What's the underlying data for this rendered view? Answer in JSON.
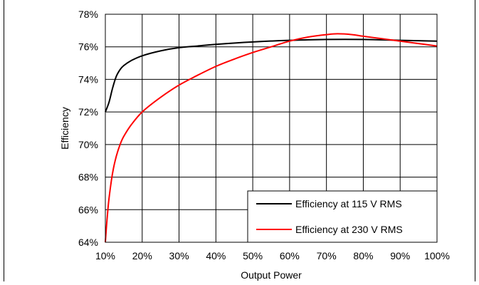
{
  "chart_data": {
    "type": "line",
    "title": "",
    "xlabel": "Output Power",
    "ylabel": "Efficiency",
    "xlim": [
      10,
      100
    ],
    "ylim": [
      64,
      78
    ],
    "x_ticks": [
      "10%",
      "20%",
      "30%",
      "40%",
      "50%",
      "60%",
      "70%",
      "80%",
      "90%",
      "100%"
    ],
    "y_ticks": [
      "64%",
      "66%",
      "68%",
      "70%",
      "72%",
      "74%",
      "76%",
      "78%"
    ],
    "grid": true,
    "legend_position": "bottom-right",
    "series": [
      {
        "name": "Efficiency at 115 V RMS",
        "color": "#000000",
        "x": [
          10,
          11,
          12,
          13,
          14,
          15,
          17,
          20,
          25,
          30,
          35,
          40,
          50,
          60,
          70,
          80,
          90,
          100
        ],
        "y": [
          72.0,
          72.6,
          73.5,
          74.2,
          74.6,
          74.85,
          75.15,
          75.45,
          75.75,
          75.95,
          76.05,
          76.15,
          76.3,
          76.4,
          76.45,
          76.45,
          76.4,
          76.35
        ]
      },
      {
        "name": "Efficiency at 230 V RMS",
        "color": "#ff0000",
        "x": [
          10,
          10.5,
          11,
          12,
          13,
          14,
          15,
          17,
          20,
          25,
          30,
          35,
          40,
          45,
          50,
          55,
          60,
          65,
          70,
          73,
          77,
          80,
          85,
          90,
          95,
          100
        ],
        "y": [
          64.0,
          65.5,
          66.7,
          68.3,
          69.3,
          70.0,
          70.5,
          71.2,
          72.0,
          72.9,
          73.65,
          74.25,
          74.8,
          75.25,
          75.65,
          76.0,
          76.35,
          76.6,
          76.75,
          76.8,
          76.75,
          76.65,
          76.5,
          76.35,
          76.2,
          76.05
        ]
      }
    ]
  }
}
